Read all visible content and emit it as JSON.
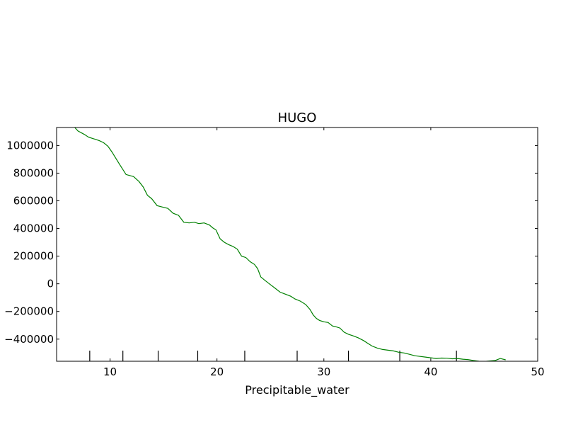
{
  "chart_data": {
    "type": "line",
    "title": "HUGO",
    "xlabel": "Precipitable_water",
    "ylabel": "",
    "xlim": [
      5,
      50
    ],
    "ylim": [
      -560000,
      1130000
    ],
    "x_ticks": [
      10,
      20,
      30,
      40,
      50
    ],
    "y_ticks": [
      -400000,
      -200000,
      0,
      200000,
      400000,
      600000,
      800000,
      1000000
    ],
    "grid": false,
    "legend": "none",
    "line_color": "#008000",
    "rug_x": [
      8.1,
      11.2,
      14.5,
      18.2,
      22.6,
      27.5,
      32.3,
      37.1,
      42.4
    ],
    "series": [
      {
        "x": [
          6.7,
          7.0,
          7.6,
          8.0,
          8.6,
          9.0,
          9.4,
          9.8,
          10.2,
          10.6,
          11.0,
          11.5,
          12.2,
          12.7,
          13.1,
          13.5,
          13.9,
          14.4,
          14.9,
          15.4,
          15.9,
          16.4,
          16.9,
          17.4,
          17.9,
          18.3,
          18.8,
          19.3,
          19.6,
          19.9,
          20.3,
          20.7,
          21.1,
          21.5,
          21.9,
          22.3,
          22.7,
          23.1,
          23.5,
          23.8,
          24.1,
          24.4,
          24.9,
          25.4,
          25.9,
          26.4,
          26.9,
          27.3,
          27.8,
          28.3,
          28.7,
          29.0,
          29.3,
          29.6,
          30.0,
          30.4,
          30.8,
          31.1,
          31.5,
          31.9,
          32.3,
          32.7,
          33.2,
          33.7,
          34.1,
          34.5,
          35.0,
          35.5,
          36.0,
          36.5,
          37.0,
          37.5,
          38.0,
          38.5,
          39.0,
          39.5,
          40.0,
          40.5,
          41.0,
          41.5,
          42.0,
          42.5,
          43.0,
          43.5,
          44.0,
          44.5,
          45.0,
          45.5,
          46.0,
          46.5,
          47.0
        ],
        "values": [
          1130000,
          1105000,
          1080000,
          1060000,
          1045000,
          1035000,
          1020000,
          995000,
          950000,
          900000,
          850000,
          790000,
          775000,
          740000,
          700000,
          640000,
          615000,
          565000,
          555000,
          545000,
          510000,
          495000,
          445000,
          440000,
          445000,
          435000,
          440000,
          425000,
          405000,
          390000,
          325000,
          300000,
          283000,
          270000,
          250000,
          200000,
          190000,
          160000,
          140000,
          110000,
          50000,
          30000,
          0,
          -30000,
          -60000,
          -75000,
          -90000,
          -110000,
          -125000,
          -150000,
          -185000,
          -225000,
          -250000,
          -265000,
          -275000,
          -280000,
          -305000,
          -310000,
          -320000,
          -350000,
          -365000,
          -375000,
          -390000,
          -410000,
          -430000,
          -450000,
          -465000,
          -475000,
          -480000,
          -485000,
          -495000,
          -500000,
          -510000,
          -520000,
          -525000,
          -530000,
          -535000,
          -540000,
          -537000,
          -538000,
          -542000,
          -540000,
          -545000,
          -548000,
          -555000,
          -560000,
          -562000,
          -558000,
          -555000,
          -540000,
          -550000
        ]
      }
    ]
  }
}
